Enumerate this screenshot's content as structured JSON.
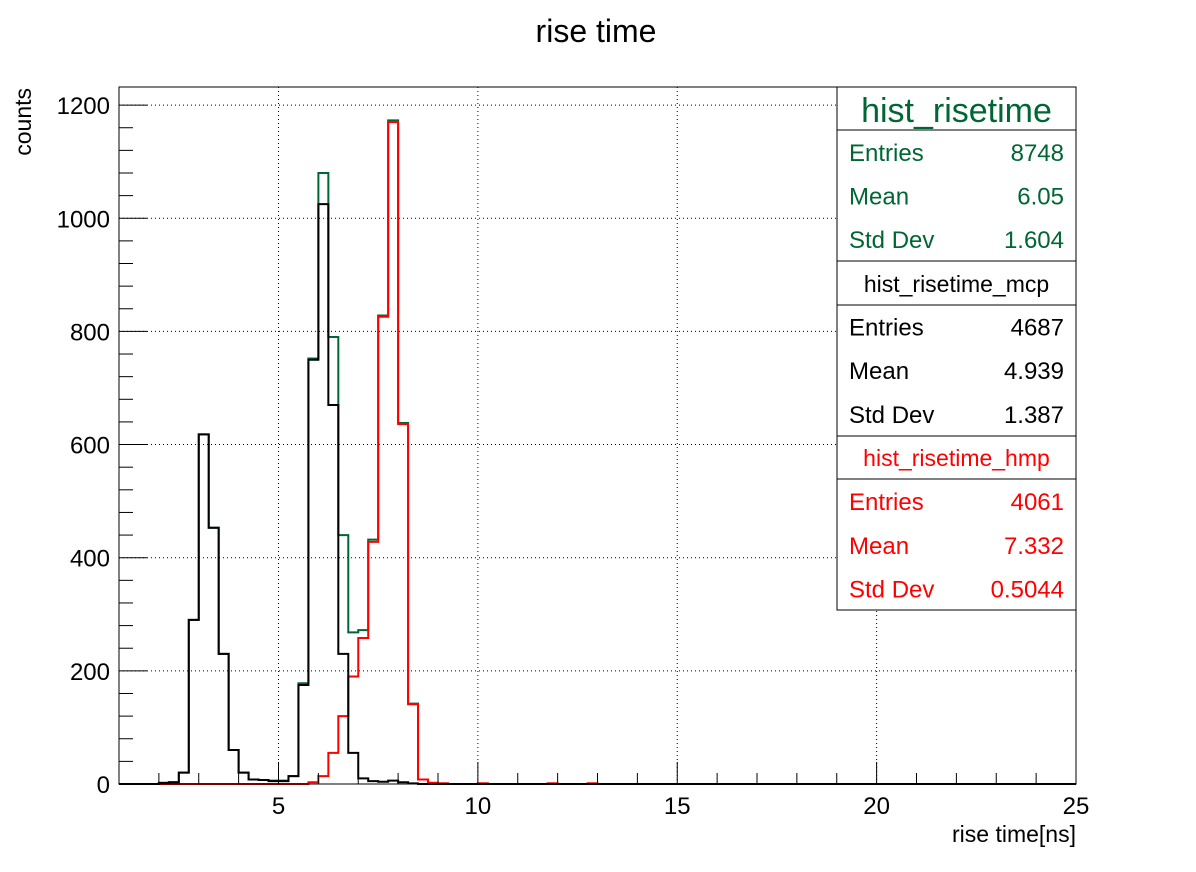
{
  "chart_data": {
    "type": "histogram-step",
    "title": "rise time",
    "xlabel": "rise time[ns]",
    "ylabel": "counts",
    "xlim": [
      1,
      25
    ],
    "ylim": [
      0,
      1232
    ],
    "grid": true,
    "x_ticks": [
      5,
      10,
      15,
      20,
      25
    ],
    "x_tick_labels": [
      "5",
      "10",
      "15",
      "20",
      "25"
    ],
    "y_ticks": [
      0,
      200,
      400,
      600,
      800,
      1000,
      1200
    ],
    "y_tick_labels": [
      "0",
      "200",
      "400",
      "600",
      "800",
      "1000",
      "1200"
    ],
    "bin_width": 0.25,
    "series": [
      {
        "name": "hist_risetime",
        "color": "#006633",
        "bins": [
          [
            2.0,
            2
          ],
          [
            2.25,
            3
          ],
          [
            2.5,
            20
          ],
          [
            2.75,
            290
          ],
          [
            3.0,
            618
          ],
          [
            3.25,
            453
          ],
          [
            3.5,
            230
          ],
          [
            3.75,
            60
          ],
          [
            4.0,
            20
          ],
          [
            4.25,
            8
          ],
          [
            4.5,
            7
          ],
          [
            4.75,
            6
          ],
          [
            5.0,
            6
          ],
          [
            5.25,
            14
          ],
          [
            5.5,
            178
          ],
          [
            5.75,
            752
          ],
          [
            6.0,
            1080
          ],
          [
            6.25,
            790
          ],
          [
            6.5,
            440
          ],
          [
            6.75,
            268
          ],
          [
            7.0,
            272
          ],
          [
            7.25,
            432
          ],
          [
            7.5,
            828
          ],
          [
            7.75,
            1173
          ],
          [
            8.0,
            638
          ],
          [
            8.25,
            142
          ],
          [
            8.5,
            8
          ],
          [
            8.75,
            2
          ],
          [
            9.0,
            1
          ],
          [
            10.0,
            1
          ],
          [
            11.75,
            1
          ],
          [
            12.75,
            1
          ]
        ]
      },
      {
        "name": "hist_risetime_mcp",
        "color": "#000000",
        "bins": [
          [
            2.0,
            2
          ],
          [
            2.25,
            3
          ],
          [
            2.5,
            20
          ],
          [
            2.75,
            290
          ],
          [
            3.0,
            618
          ],
          [
            3.25,
            453
          ],
          [
            3.5,
            230
          ],
          [
            3.75,
            60
          ],
          [
            4.0,
            20
          ],
          [
            4.25,
            8
          ],
          [
            4.5,
            7
          ],
          [
            4.75,
            5
          ],
          [
            5.0,
            5
          ],
          [
            5.25,
            14
          ],
          [
            5.5,
            175
          ],
          [
            5.75,
            750
          ],
          [
            6.0,
            1025
          ],
          [
            6.25,
            670
          ],
          [
            6.5,
            230
          ],
          [
            6.75,
            55
          ],
          [
            7.0,
            10
          ],
          [
            7.25,
            5
          ],
          [
            7.5,
            4
          ],
          [
            7.75,
            6
          ],
          [
            8.0,
            3
          ],
          [
            8.25,
            1
          ]
        ]
      },
      {
        "name": "hist_risetime_hmp",
        "color": "#ff0000",
        "bins": [
          [
            5.75,
            3
          ],
          [
            6.0,
            14
          ],
          [
            6.25,
            55
          ],
          [
            6.5,
            120
          ],
          [
            6.75,
            190
          ],
          [
            7.0,
            258
          ],
          [
            7.25,
            428
          ],
          [
            7.5,
            826
          ],
          [
            7.75,
            1170
          ],
          [
            8.0,
            636
          ],
          [
            8.25,
            141
          ],
          [
            8.5,
            8
          ],
          [
            8.75,
            2
          ],
          [
            9.0,
            1
          ],
          [
            10.0,
            1
          ],
          [
            11.75,
            1
          ],
          [
            12.75,
            1
          ]
        ]
      }
    ],
    "stats": [
      {
        "name": "hist_risetime",
        "color": "#006633",
        "rows": [
          [
            "Entries",
            "8748"
          ],
          [
            "Mean",
            "6.05"
          ],
          [
            "Std Dev",
            "1.604"
          ]
        ]
      },
      {
        "name": "hist_risetime_mcp",
        "color": "#000000",
        "rows": [
          [
            "Entries",
            "4687"
          ],
          [
            "Mean",
            "4.939"
          ],
          [
            "Std Dev",
            "1.387"
          ]
        ]
      },
      {
        "name": "hist_risetime_hmp",
        "color": "#ff0000",
        "rows": [
          [
            "Entries",
            "4061"
          ],
          [
            "Mean",
            "7.332"
          ],
          [
            "Std Dev",
            "0.5044"
          ]
        ]
      }
    ]
  }
}
